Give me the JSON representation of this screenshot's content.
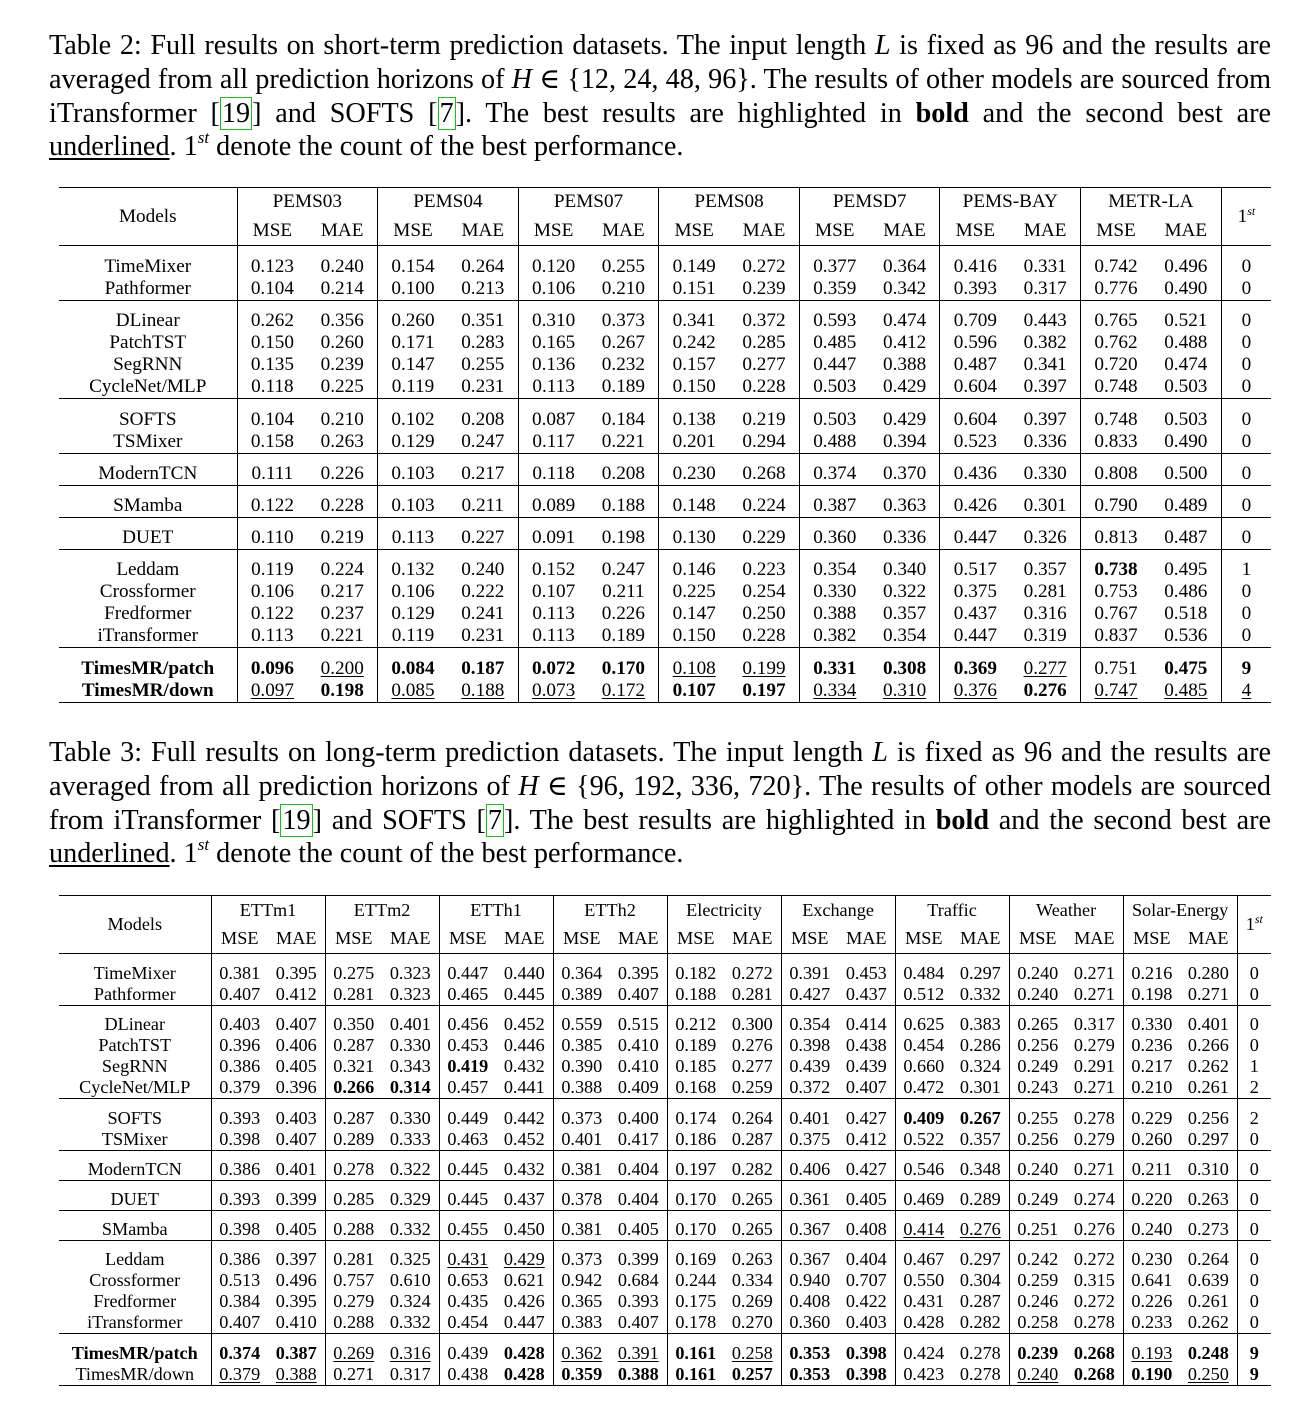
{
  "table2": {
    "caption": {
      "label": "Table 2:",
      "text_a": " Full results on short-term prediction datasets. The input length ",
      "var_L": "L",
      "text_b": " is fixed as 96 and the results are averaged from all prediction horizons of ",
      "var_H": "H",
      "text_c": " ∈ {12, 24, 48, 96}. The results of other models are sourced from iTransformer [",
      "ref1": "19",
      "text_d": "] and SOFTS [",
      "ref2": "7",
      "text_e": "]. The best results are highlighted in ",
      "bold_word": "bold",
      "text_f": " and the second best are ",
      "underline_word": "underlined",
      "text_g": ". 1",
      "sup": "st",
      "text_h": " denote the count of the best performance."
    },
    "header": {
      "models": "Models",
      "count_base": "1",
      "count_sup": "st",
      "datasets": [
        "PEMS03",
        "PEMS04",
        "PEMS07",
        "PEMS08",
        "PEMSD7",
        "PEMS-BAY",
        "METR-LA"
      ],
      "mse": "MSE",
      "mae": "MAE"
    },
    "groups": [
      [
        {
          "model": "TimeMixer",
          "values": [
            "0.123",
            "0.240",
            "0.154",
            "0.264",
            "0.120",
            "0.255",
            "0.149",
            "0.272",
            "0.377",
            "0.364",
            "0.416",
            "0.331",
            "0.742",
            "0.496"
          ],
          "count": "0"
        },
        {
          "model": "Pathformer",
          "values": [
            "0.104",
            "0.214",
            "0.100",
            "0.213",
            "0.106",
            "0.210",
            "0.151",
            "0.239",
            "0.359",
            "0.342",
            "0.393",
            "0.317",
            "0.776",
            "0.490"
          ],
          "count": "0"
        }
      ],
      [
        {
          "model": "DLinear",
          "values": [
            "0.262",
            "0.356",
            "0.260",
            "0.351",
            "0.310",
            "0.373",
            "0.341",
            "0.372",
            "0.593",
            "0.474",
            "0.709",
            "0.443",
            "0.765",
            "0.521"
          ],
          "count": "0"
        },
        {
          "model": "PatchTST",
          "values": [
            "0.150",
            "0.260",
            "0.171",
            "0.283",
            "0.165",
            "0.267",
            "0.242",
            "0.285",
            "0.485",
            "0.412",
            "0.596",
            "0.382",
            "0.762",
            "0.488"
          ],
          "count": "0"
        },
        {
          "model": "SegRNN",
          "values": [
            "0.135",
            "0.239",
            "0.147",
            "0.255",
            "0.136",
            "0.232",
            "0.157",
            "0.277",
            "0.447",
            "0.388",
            "0.487",
            "0.341",
            "0.720",
            "0.474"
          ],
          "count": "0"
        },
        {
          "model": "CycleNet/MLP",
          "values": [
            "0.118",
            "0.225",
            "0.119",
            "0.231",
            "0.113",
            "0.189",
            "0.150",
            "0.228",
            "0.503",
            "0.429",
            "0.604",
            "0.397",
            "0.748",
            "0.503"
          ],
          "count": "0"
        }
      ],
      [
        {
          "model": "SOFTS",
          "values": [
            "0.104",
            "0.210",
            "0.102",
            "0.208",
            "0.087",
            "0.184",
            "0.138",
            "0.219",
            "0.503",
            "0.429",
            "0.604",
            "0.397",
            "0.748",
            "0.503"
          ],
          "count": "0"
        },
        {
          "model": "TSMixer",
          "values": [
            "0.158",
            "0.263",
            "0.129",
            "0.247",
            "0.117",
            "0.221",
            "0.201",
            "0.294",
            "0.488",
            "0.394",
            "0.523",
            "0.336",
            "0.833",
            "0.490"
          ],
          "count": "0"
        }
      ],
      [
        {
          "model": "ModernTCN",
          "values": [
            "0.111",
            "0.226",
            "0.103",
            "0.217",
            "0.118",
            "0.208",
            "0.230",
            "0.268",
            "0.374",
            "0.370",
            "0.436",
            "0.330",
            "0.808",
            "0.500"
          ],
          "count": "0"
        }
      ],
      [
        {
          "model": "SMamba",
          "values": [
            "0.122",
            "0.228",
            "0.103",
            "0.211",
            "0.089",
            "0.188",
            "0.148",
            "0.224",
            "0.387",
            "0.363",
            "0.426",
            "0.301",
            "0.790",
            "0.489"
          ],
          "count": "0"
        }
      ],
      [
        {
          "model": "DUET",
          "values": [
            "0.110",
            "0.219",
            "0.113",
            "0.227",
            "0.091",
            "0.198",
            "0.130",
            "0.229",
            "0.360",
            "0.336",
            "0.447",
            "0.326",
            "0.813",
            "0.487"
          ],
          "count": "0"
        }
      ],
      [
        {
          "model": "Leddam",
          "values": [
            "0.119",
            "0.224",
            "0.132",
            "0.240",
            "0.152",
            "0.247",
            "0.146",
            "0.223",
            "0.354",
            "0.340",
            "0.517",
            "0.357",
            "0.738",
            "0.495"
          ],
          "count": "1",
          "styles": {
            "12": "b"
          }
        },
        {
          "model": "Crossformer",
          "values": [
            "0.106",
            "0.217",
            "0.106",
            "0.222",
            "0.107",
            "0.211",
            "0.225",
            "0.254",
            "0.330",
            "0.322",
            "0.375",
            "0.281",
            "0.753",
            "0.486"
          ],
          "count": "0"
        },
        {
          "model": "Fredformer",
          "values": [
            "0.122",
            "0.237",
            "0.129",
            "0.241",
            "0.113",
            "0.226",
            "0.147",
            "0.250",
            "0.388",
            "0.357",
            "0.437",
            "0.316",
            "0.767",
            "0.518"
          ],
          "count": "0"
        },
        {
          "model": "iTransformer",
          "values": [
            "0.113",
            "0.221",
            "0.119",
            "0.231",
            "0.113",
            "0.189",
            "0.150",
            "0.228",
            "0.382",
            "0.354",
            "0.447",
            "0.319",
            "0.837",
            "0.536"
          ],
          "count": "0"
        }
      ],
      [
        {
          "model": "TimesMR/patch",
          "model_style": "b",
          "values": [
            "0.096",
            "0.200",
            "0.084",
            "0.187",
            "0.072",
            "0.170",
            "0.108",
            "0.199",
            "0.331",
            "0.308",
            "0.369",
            "0.277",
            "0.751",
            "0.475"
          ],
          "count": "9",
          "count_style": "b",
          "styles": {
            "0": "b",
            "1": "u",
            "2": "b",
            "3": "b",
            "4": "b",
            "5": "b",
            "6": "u",
            "7": "u",
            "8": "b",
            "9": "b",
            "10": "b",
            "11": "u",
            "13": "b"
          }
        },
        {
          "model": "TimesMR/down",
          "model_style": "b",
          "values": [
            "0.097",
            "0.198",
            "0.085",
            "0.188",
            "0.073",
            "0.172",
            "0.107",
            "0.197",
            "0.334",
            "0.310",
            "0.376",
            "0.276",
            "0.747",
            "0.485"
          ],
          "count": "4",
          "count_style": "u",
          "styles": {
            "0": "u",
            "1": "b",
            "2": "u",
            "3": "u",
            "4": "u",
            "5": "u",
            "6": "b",
            "7": "b",
            "8": "u",
            "9": "u",
            "10": "u",
            "11": "b",
            "12": "u",
            "13": "u"
          }
        }
      ]
    ]
  },
  "table3": {
    "caption": {
      "label": "Table 3:",
      "text_a": " Full results on long-term prediction datasets. The input length ",
      "var_L": "L",
      "text_b": " is fixed as 96 and the results are averaged from all prediction horizons of ",
      "var_H": "H",
      "text_c": " ∈ {96, 192, 336, 720}. The results of other models are sourced from iTransformer [",
      "ref1": "19",
      "text_d": "] and SOFTS [",
      "ref2": "7",
      "text_e": "]. The best results are highlighted in ",
      "bold_word": "bold",
      "text_f": " and the second best are ",
      "underline_word": "underlined",
      "text_g": ". 1",
      "sup": "st",
      "text_h": " denote the count of the best performance."
    },
    "header": {
      "models": "Models",
      "count_base": "1",
      "count_sup": "st",
      "datasets": [
        "ETTm1",
        "ETTm2",
        "ETTh1",
        "ETTh2",
        "Electricity",
        "Exchange",
        "Traffic",
        "Weather",
        "Solar-Energy"
      ],
      "mse": "MSE",
      "mae": "MAE"
    },
    "groups": [
      [
        {
          "model": "TimeMixer",
          "values": [
            "0.381",
            "0.395",
            "0.275",
            "0.323",
            "0.447",
            "0.440",
            "0.364",
            "0.395",
            "0.182",
            "0.272",
            "0.391",
            "0.453",
            "0.484",
            "0.297",
            "0.240",
            "0.271",
            "0.216",
            "0.280"
          ],
          "count": "0"
        },
        {
          "model": "Pathformer",
          "values": [
            "0.407",
            "0.412",
            "0.281",
            "0.323",
            "0.465",
            "0.445",
            "0.389",
            "0.407",
            "0.188",
            "0.281",
            "0.427",
            "0.437",
            "0.512",
            "0.332",
            "0.240",
            "0.271",
            "0.198",
            "0.271"
          ],
          "count": "0"
        }
      ],
      [
        {
          "model": "DLinear",
          "values": [
            "0.403",
            "0.407",
            "0.350",
            "0.401",
            "0.456",
            "0.452",
            "0.559",
            "0.515",
            "0.212",
            "0.300",
            "0.354",
            "0.414",
            "0.625",
            "0.383",
            "0.265",
            "0.317",
            "0.330",
            "0.401"
          ],
          "count": "0"
        },
        {
          "model": "PatchTST",
          "values": [
            "0.396",
            "0.406",
            "0.287",
            "0.330",
            "0.453",
            "0.446",
            "0.385",
            "0.410",
            "0.189",
            "0.276",
            "0.398",
            "0.438",
            "0.454",
            "0.286",
            "0.256",
            "0.279",
            "0.236",
            "0.266"
          ],
          "count": "0"
        },
        {
          "model": "SegRNN",
          "values": [
            "0.386",
            "0.405",
            "0.321",
            "0.343",
            "0.419",
            "0.432",
            "0.390",
            "0.410",
            "0.185",
            "0.277",
            "0.439",
            "0.439",
            "0.660",
            "0.324",
            "0.249",
            "0.291",
            "0.217",
            "0.262"
          ],
          "count": "1",
          "styles": {
            "4": "b"
          }
        },
        {
          "model": "CycleNet/MLP",
          "values": [
            "0.379",
            "0.396",
            "0.266",
            "0.314",
            "0.457",
            "0.441",
            "0.388",
            "0.409",
            "0.168",
            "0.259",
            "0.372",
            "0.407",
            "0.472",
            "0.301",
            "0.243",
            "0.271",
            "0.210",
            "0.261"
          ],
          "count": "2",
          "styles": {
            "2": "b",
            "3": "b"
          }
        }
      ],
      [
        {
          "model": "SOFTS",
          "values": [
            "0.393",
            "0.403",
            "0.287",
            "0.330",
            "0.449",
            "0.442",
            "0.373",
            "0.400",
            "0.174",
            "0.264",
            "0.401",
            "0.427",
            "0.409",
            "0.267",
            "0.255",
            "0.278",
            "0.229",
            "0.256"
          ],
          "count": "2",
          "styles": {
            "12": "b",
            "13": "b"
          }
        },
        {
          "model": "TSMixer",
          "values": [
            "0.398",
            "0.407",
            "0.289",
            "0.333",
            "0.463",
            "0.452",
            "0.401",
            "0.417",
            "0.186",
            "0.287",
            "0.375",
            "0.412",
            "0.522",
            "0.357",
            "0.256",
            "0.279",
            "0.260",
            "0.297"
          ],
          "count": "0"
        }
      ],
      [
        {
          "model": "ModernTCN",
          "values": [
            "0.386",
            "0.401",
            "0.278",
            "0.322",
            "0.445",
            "0.432",
            "0.381",
            "0.404",
            "0.197",
            "0.282",
            "0.406",
            "0.427",
            "0.546",
            "0.348",
            "0.240",
            "0.271",
            "0.211",
            "0.310"
          ],
          "count": "0"
        }
      ],
      [
        {
          "model": "DUET",
          "values": [
            "0.393",
            "0.399",
            "0.285",
            "0.329",
            "0.445",
            "0.437",
            "0.378",
            "0.404",
            "0.170",
            "0.265",
            "0.361",
            "0.405",
            "0.469",
            "0.289",
            "0.249",
            "0.274",
            "0.220",
            "0.263"
          ],
          "count": "0"
        }
      ],
      [
        {
          "model": "SMamba",
          "values": [
            "0.398",
            "0.405",
            "0.288",
            "0.332",
            "0.455",
            "0.450",
            "0.381",
            "0.405",
            "0.170",
            "0.265",
            "0.367",
            "0.408",
            "0.414",
            "0.276",
            "0.251",
            "0.276",
            "0.240",
            "0.273"
          ],
          "count": "0",
          "styles": {
            "12": "u",
            "13": "u"
          }
        }
      ],
      [
        {
          "model": "Leddam",
          "values": [
            "0.386",
            "0.397",
            "0.281",
            "0.325",
            "0.431",
            "0.429",
            "0.373",
            "0.399",
            "0.169",
            "0.263",
            "0.367",
            "0.404",
            "0.467",
            "0.297",
            "0.242",
            "0.272",
            "0.230",
            "0.264"
          ],
          "count": "0",
          "styles": {
            "4": "u",
            "5": "u"
          }
        },
        {
          "model": "Crossformer",
          "values": [
            "0.513",
            "0.496",
            "0.757",
            "0.610",
            "0.653",
            "0.621",
            "0.942",
            "0.684",
            "0.244",
            "0.334",
            "0.940",
            "0.707",
            "0.550",
            "0.304",
            "0.259",
            "0.315",
            "0.641",
            "0.639"
          ],
          "count": "0"
        },
        {
          "model": "Fredformer",
          "values": [
            "0.384",
            "0.395",
            "0.279",
            "0.324",
            "0.435",
            "0.426",
            "0.365",
            "0.393",
            "0.175",
            "0.269",
            "0.408",
            "0.422",
            "0.431",
            "0.287",
            "0.246",
            "0.272",
            "0.226",
            "0.261"
          ],
          "count": "0"
        },
        {
          "model": "iTransformer",
          "values": [
            "0.407",
            "0.410",
            "0.288",
            "0.332",
            "0.454",
            "0.447",
            "0.383",
            "0.407",
            "0.178",
            "0.270",
            "0.360",
            "0.403",
            "0.428",
            "0.282",
            "0.258",
            "0.278",
            "0.233",
            "0.262"
          ],
          "count": "0"
        }
      ],
      [
        {
          "model": "TimesMR/patch",
          "model_style": "b",
          "values": [
            "0.374",
            "0.387",
            "0.269",
            "0.316",
            "0.439",
            "0.428",
            "0.362",
            "0.391",
            "0.161",
            "0.258",
            "0.353",
            "0.398",
            "0.424",
            "0.278",
            "0.239",
            "0.268",
            "0.193",
            "0.248"
          ],
          "count": "9",
          "count_style": "b",
          "styles": {
            "0": "b",
            "1": "b",
            "2": "u",
            "3": "u",
            "5": "b",
            "6": "u",
            "7": "u",
            "8": "b",
            "9": "u",
            "10": "b",
            "11": "b",
            "14": "b",
            "15": "b",
            "16": "u",
            "17": "b"
          }
        },
        {
          "model": "TimesMR/down",
          "values": [
            "0.379",
            "0.388",
            "0.271",
            "0.317",
            "0.438",
            "0.428",
            "0.359",
            "0.388",
            "0.161",
            "0.257",
            "0.353",
            "0.398",
            "0.423",
            "0.278",
            "0.240",
            "0.268",
            "0.190",
            "0.250"
          ],
          "count": "9",
          "count_style": "b",
          "styles": {
            "0": "u",
            "1": "u",
            "5": "b",
            "6": "b",
            "7": "b",
            "8": "b",
            "9": "b",
            "10": "b",
            "11": "b",
            "14": "u",
            "15": "b",
            "16": "b",
            "17": "u"
          }
        }
      ]
    ]
  }
}
